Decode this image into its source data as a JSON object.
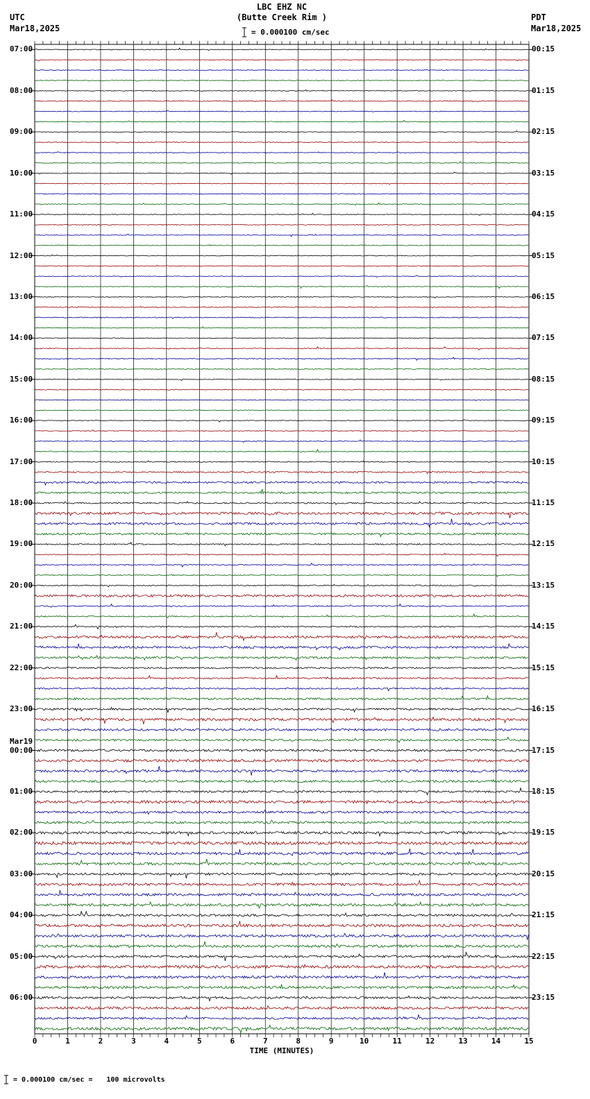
{
  "header": {
    "title_line1": "LBC EHZ NC",
    "title_line2": "(Butte Creek Rim )",
    "left_timezone": "UTC",
    "left_date": "Mar18,2025",
    "right_timezone": "PDT",
    "right_date": "Mar18,2025",
    "scale_text": "= 0.000100 cm/sec"
  },
  "footer": {
    "scale_text": "= 0.000100 cm/sec =",
    "scale_value": "100 microvolts"
  },
  "chart_data": {
    "type": "line",
    "title": "LBC EHZ NC (Butte Creek Rim )",
    "xlabel": "TIME (MINUTES)",
    "x_range": [
      0,
      15
    ],
    "x_ticks": [
      0,
      1,
      2,
      3,
      4,
      5,
      6,
      7,
      8,
      9,
      10,
      11,
      12,
      13,
      14,
      15
    ],
    "rows": 96,
    "minutes_per_row": 15,
    "grid": true,
    "trace_color_cycle": [
      "#000000",
      "#990000",
      "#000099",
      "#006600"
    ],
    "left_axis_labels": [
      {
        "row": 0,
        "label": "07:00"
      },
      {
        "row": 4,
        "label": "08:00"
      },
      {
        "row": 8,
        "label": "09:00"
      },
      {
        "row": 12,
        "label": "10:00"
      },
      {
        "row": 16,
        "label": "11:00"
      },
      {
        "row": 20,
        "label": "12:00"
      },
      {
        "row": 24,
        "label": "13:00"
      },
      {
        "row": 28,
        "label": "14:00"
      },
      {
        "row": 32,
        "label": "15:00"
      },
      {
        "row": 36,
        "label": "16:00"
      },
      {
        "row": 40,
        "label": "17:00"
      },
      {
        "row": 44,
        "label": "18:00"
      },
      {
        "row": 48,
        "label": "19:00"
      },
      {
        "row": 52,
        "label": "20:00"
      },
      {
        "row": 56,
        "label": "21:00"
      },
      {
        "row": 60,
        "label": "22:00"
      },
      {
        "row": 64,
        "label": "23:00"
      },
      {
        "row": 68,
        "label": "00:00",
        "date": "Mar19"
      },
      {
        "row": 72,
        "label": "01:00"
      },
      {
        "row": 76,
        "label": "02:00"
      },
      {
        "row": 80,
        "label": "03:00"
      },
      {
        "row": 84,
        "label": "04:00"
      },
      {
        "row": 88,
        "label": "05:00"
      },
      {
        "row": 92,
        "label": "06:00"
      }
    ],
    "right_axis_labels": [
      {
        "row": 0,
        "label": "00:15"
      },
      {
        "row": 4,
        "label": "01:15"
      },
      {
        "row": 8,
        "label": "02:15"
      },
      {
        "row": 12,
        "label": "03:15"
      },
      {
        "row": 16,
        "label": "04:15"
      },
      {
        "row": 20,
        "label": "05:15"
      },
      {
        "row": 24,
        "label": "06:15"
      },
      {
        "row": 28,
        "label": "07:15"
      },
      {
        "row": 32,
        "label": "08:15"
      },
      {
        "row": 36,
        "label": "09:15"
      },
      {
        "row": 40,
        "label": "10:15"
      },
      {
        "row": 44,
        "label": "11:15"
      },
      {
        "row": 48,
        "label": "12:15"
      },
      {
        "row": 52,
        "label": "13:15"
      },
      {
        "row": 56,
        "label": "14:15"
      },
      {
        "row": 60,
        "label": "15:15"
      },
      {
        "row": 64,
        "label": "16:15"
      },
      {
        "row": 68,
        "label": "17:15"
      },
      {
        "row": 72,
        "label": "18:15"
      },
      {
        "row": 76,
        "label": "19:15"
      },
      {
        "row": 80,
        "label": "20:15"
      },
      {
        "row": 84,
        "label": "21:15"
      },
      {
        "row": 88,
        "label": "22:15"
      },
      {
        "row": 92,
        "label": "23:15"
      }
    ],
    "row_noise_amplitude": [
      0.5,
      0.5,
      0.5,
      0.5,
      0.5,
      0.6,
      0.5,
      0.5,
      0.5,
      0.6,
      0.5,
      0.5,
      0.5,
      0.5,
      0.6,
      0.5,
      0.5,
      0.6,
      0.5,
      0.5,
      0.5,
      0.5,
      0.5,
      0.5,
      0.5,
      0.6,
      0.6,
      0.5,
      0.5,
      0.6,
      0.6,
      0.6,
      0.5,
      0.6,
      0.5,
      0.5,
      0.5,
      0.5,
      0.5,
      0.6,
      0.7,
      1.0,
      1.3,
      1.3,
      1.0,
      1.8,
      1.6,
      1.4,
      0.9,
      0.7,
      0.7,
      0.7,
      0.8,
      1.6,
      0.8,
      0.8,
      0.9,
      1.8,
      1.6,
      1.4,
      1.1,
      1.1,
      1.1,
      1.4,
      1.4,
      1.8,
      1.6,
      1.4,
      1.6,
      1.8,
      1.8,
      1.6,
      1.4,
      2.0,
      1.6,
      1.6,
      1.8,
      2.2,
      2.0,
      1.8,
      1.6,
      1.8,
      1.8,
      1.8,
      1.6,
      2.0,
      1.8,
      1.8,
      1.6,
      2.0,
      1.8,
      1.8,
      1.6,
      1.8,
      1.6,
      2.0
    ]
  }
}
